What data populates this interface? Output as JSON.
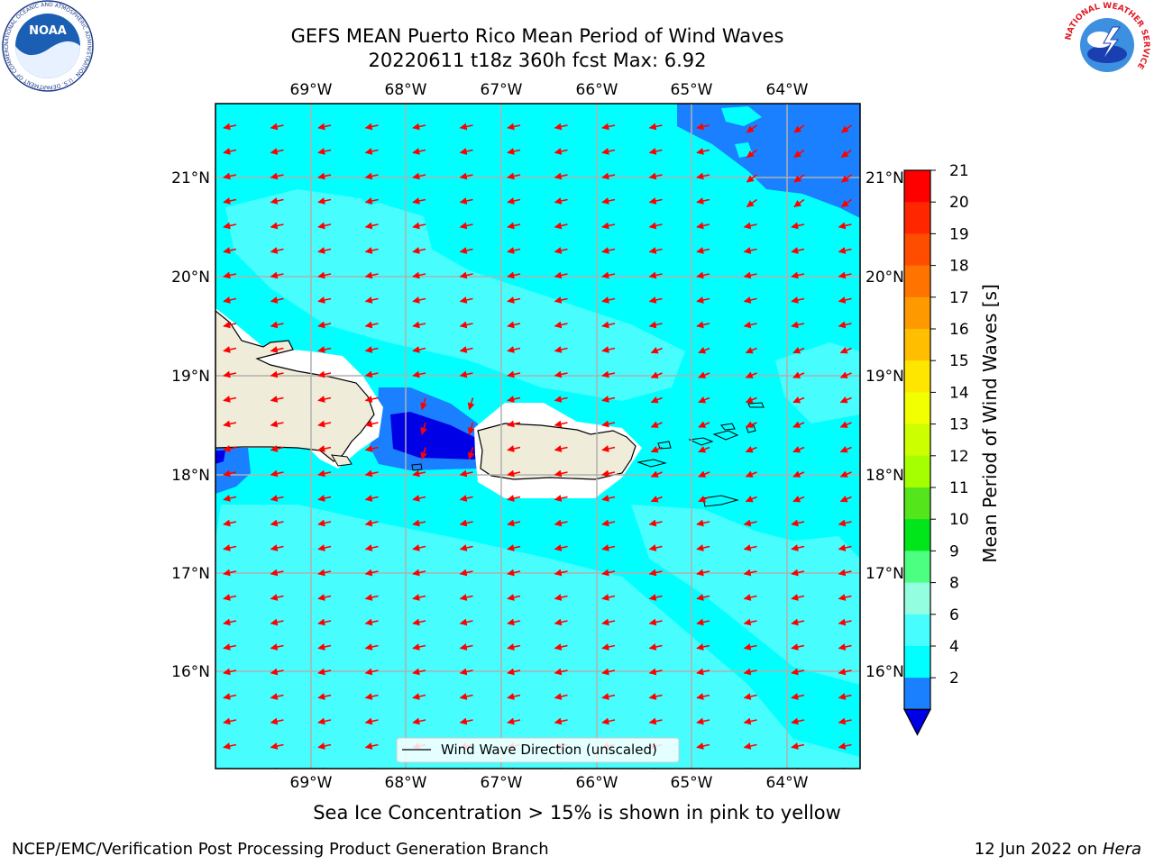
{
  "title": {
    "line1": "GEFS MEAN Puerto Rico Mean Period of Wind Waves",
    "line2": "20220611 t18z 360h fcst   Max: 6.92"
  },
  "logos": {
    "noaa_text": "NOAA",
    "noaa_ring": "NATIONAL OCEANIC AND ATMOSPHERIC ADMINISTRATION · U.S. DEPARTMENT OF COMMERCE",
    "nws_ring": "NATIONAL WEATHER SERVICE"
  },
  "map": {
    "lon_labels": [
      "69°W",
      "68°W",
      "67°W",
      "66°W",
      "65°W",
      "64°W"
    ],
    "lat_labels": [
      "21°N",
      "20°N",
      "19°N",
      "18°N",
      "17°N",
      "16°N"
    ],
    "legend": "Wind Wave Direction (unscaled)",
    "colors": {
      "land": "#efedda",
      "sea_4_6": "#00ffff",
      "sea_6_8": "#47fdfd",
      "sea_2_4": "#1a80ff",
      "sea_lt2": "#0000e6",
      "arrow": "#ff0000"
    }
  },
  "colorbar": {
    "title": "Mean Period of Wind Waves [s]",
    "ticks": [
      "21",
      "20",
      "19",
      "18",
      "17",
      "16",
      "15",
      "14",
      "13",
      "12",
      "11",
      "10",
      "9",
      "8",
      "6",
      "4",
      "2"
    ],
    "colors": [
      "#ff0000",
      "#ff2600",
      "#ff4d00",
      "#ff7300",
      "#ff9900",
      "#ffbf00",
      "#ffe600",
      "#f2ff00",
      "#ccff00",
      "#a6ff00",
      "#54e61a",
      "#00e61a",
      "#4dff80",
      "#94ffe0",
      "#47fdfd",
      "#00ffff",
      "#1a80ff"
    ],
    "under_color": "#0000e6"
  },
  "footer": {
    "note": "Sea Ice Concentration > 15% is shown in pink to yellow",
    "left": "NCEP/EMC/Verification Post Processing Product Generation Branch",
    "right_prefix": "12 Jun 2022 on ",
    "right_host": "Hera"
  }
}
